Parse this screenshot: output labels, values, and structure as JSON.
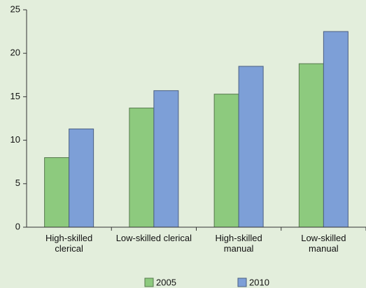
{
  "chart_data": {
    "type": "bar",
    "categories": [
      "High-skilled clerical",
      "Low-skilled clerical",
      "High-skilled manual",
      "Low-skilled manual"
    ],
    "series": [
      {
        "name": "2005",
        "color": "#8dca7e",
        "values": [
          8.0,
          13.7,
          15.3,
          18.8
        ]
      },
      {
        "name": "2010",
        "color": "#7d9fd7",
        "values": [
          11.3,
          15.7,
          18.5,
          22.5
        ]
      }
    ],
    "ylim": [
      0,
      25
    ],
    "yticks": [
      0,
      5,
      10,
      15,
      20,
      25
    ],
    "grid": false,
    "legend": "bottom"
  }
}
